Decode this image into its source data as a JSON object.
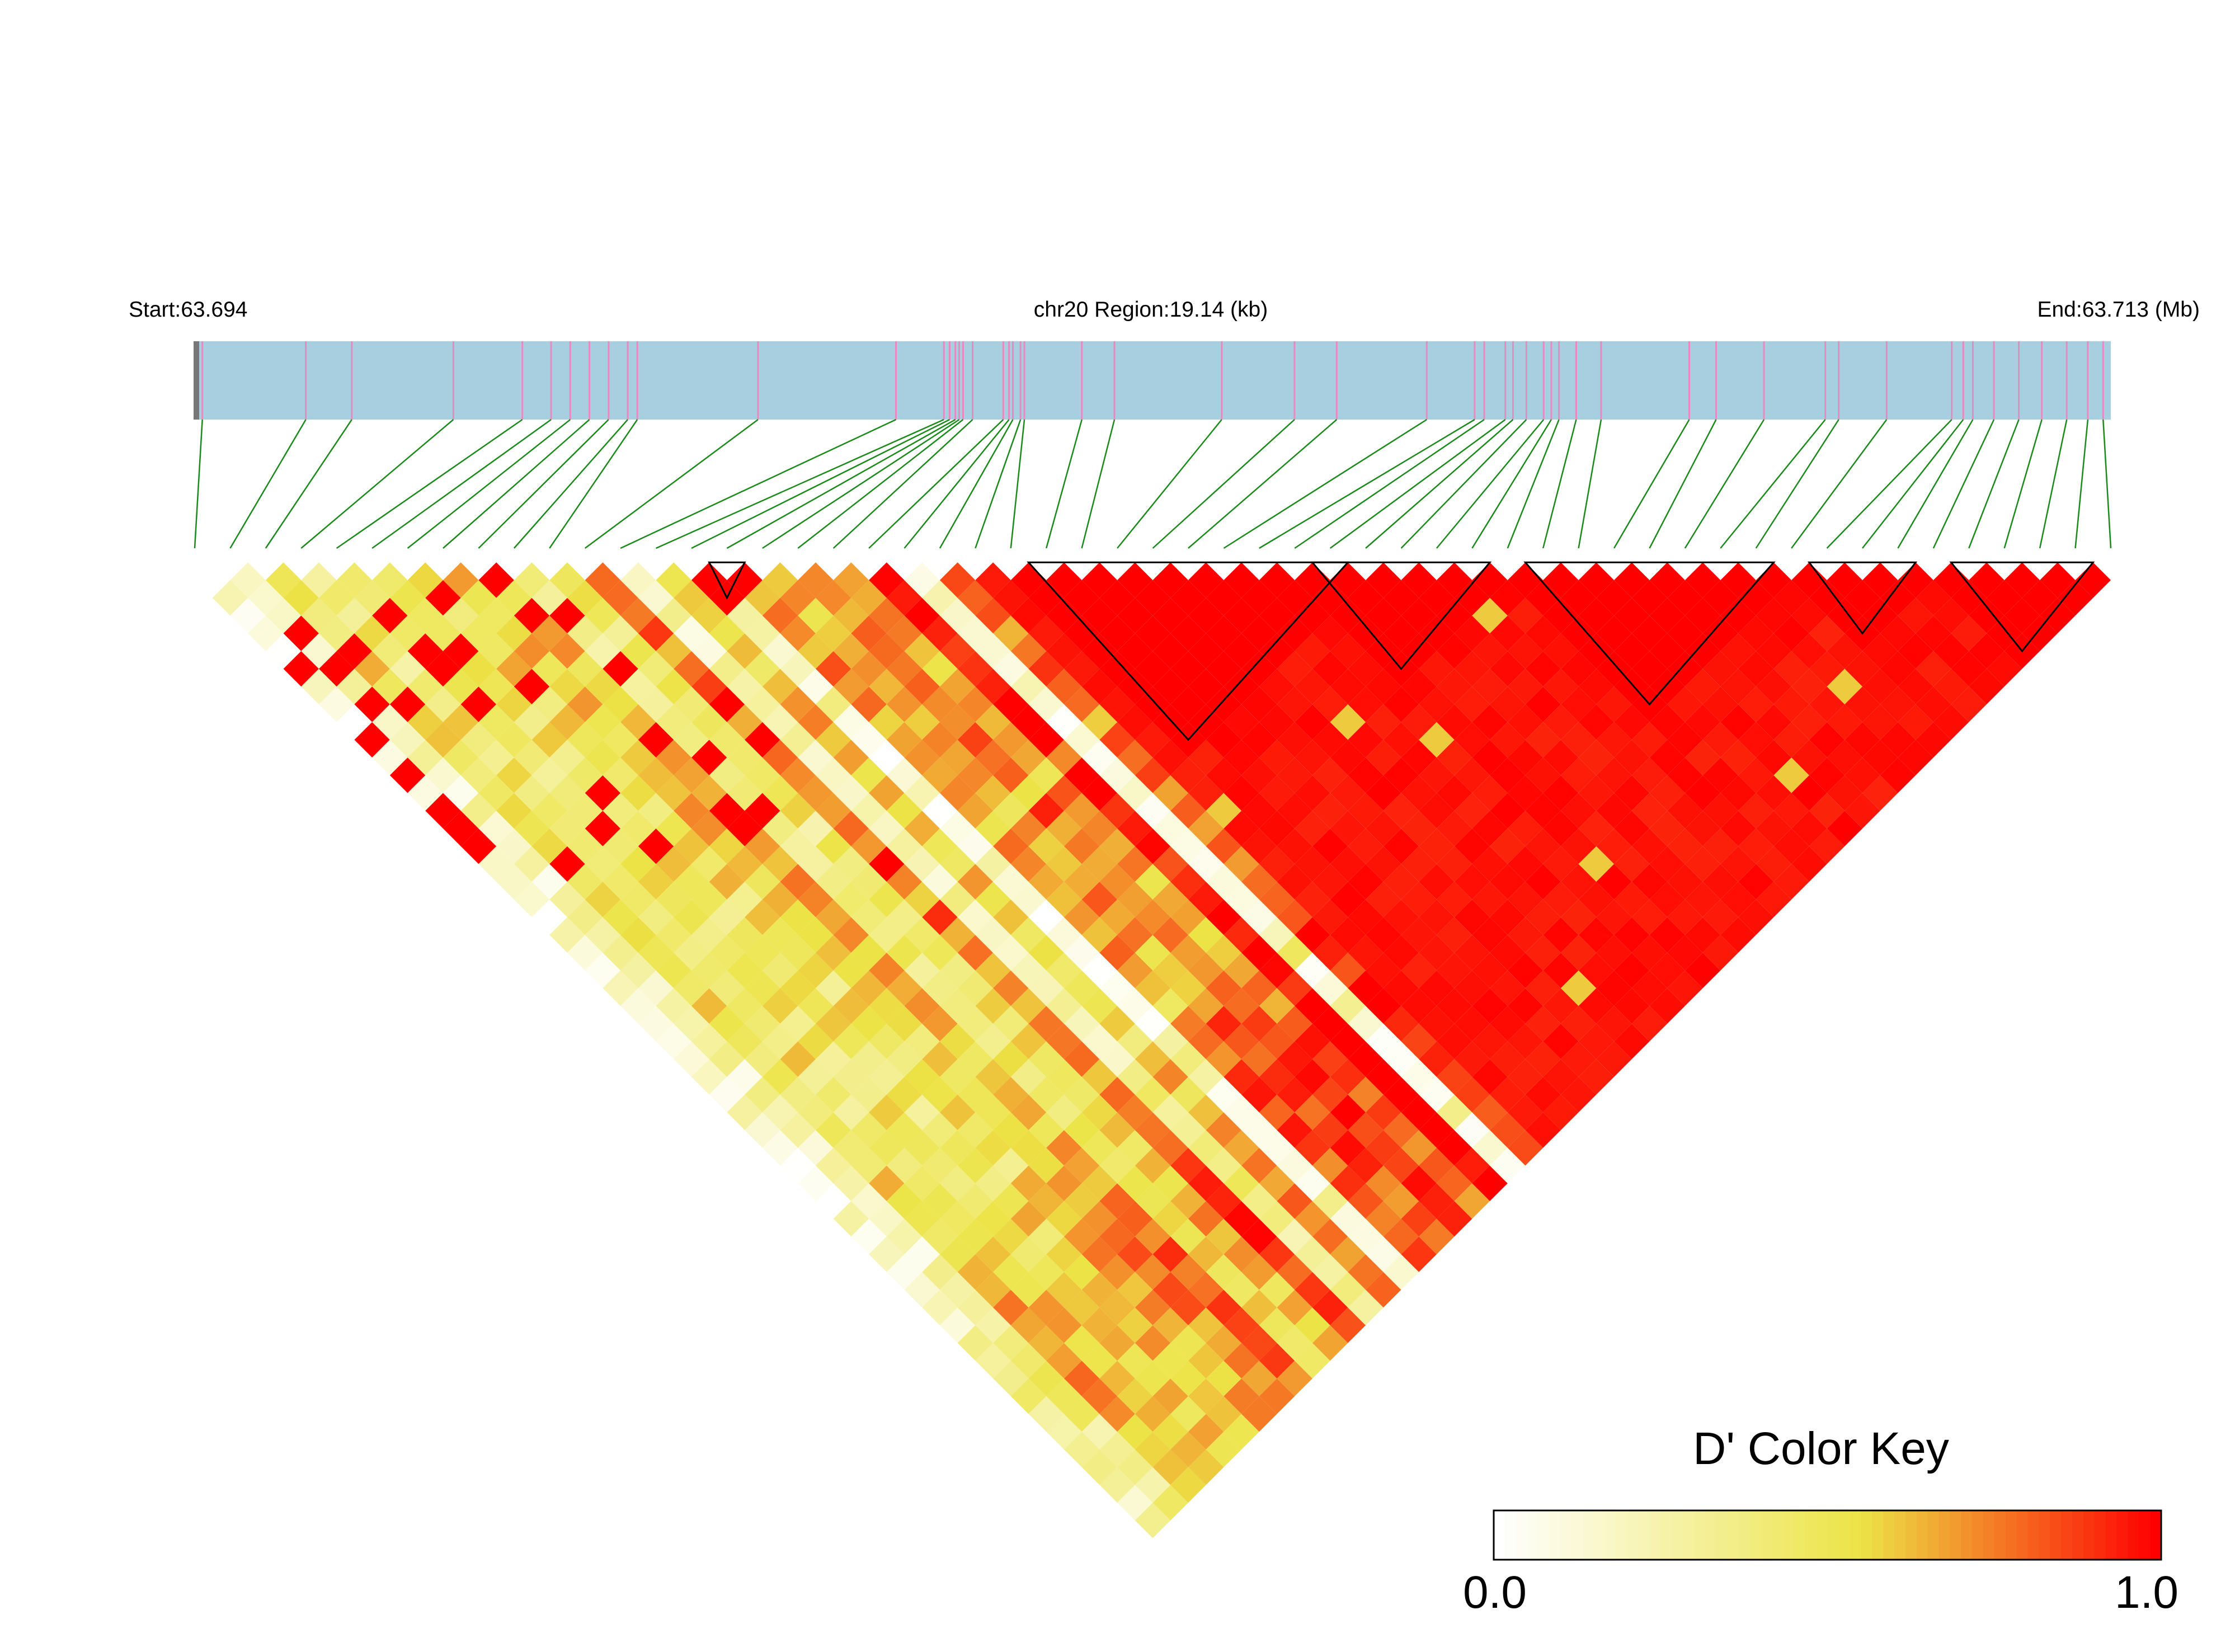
{
  "header": {
    "start_label": "Start:63.694",
    "region_label": "chr20 Region:19.14 (kb)",
    "end_label": "End:63.713 (Mb)"
  },
  "colors": {
    "track_fill": "#a8cfe0",
    "track_tick": "#e68ac0",
    "connector": "#1a8a1a",
    "low": "#ffffff",
    "mid": "#ece446",
    "high": "#ff0000",
    "block_outline": "#000000"
  },
  "chart_data": {
    "type": "heatmap",
    "subtype": "LD triangle (D')",
    "chromosome": "chr20",
    "region_start_mb": 63.694,
    "region_end_mb": 63.713,
    "region_kb": 19.14,
    "snp_count": 55,
    "snp_track_positions_fraction": [
      0.004,
      0.058,
      0.082,
      0.135,
      0.171,
      0.186,
      0.196,
      0.206,
      0.216,
      0.226,
      0.231,
      0.294,
      0.366,
      0.391,
      0.394,
      0.397,
      0.399,
      0.401,
      0.406,
      0.422,
      0.425,
      0.427,
      0.431,
      0.433,
      0.463,
      0.48,
      0.536,
      0.574,
      0.596,
      0.643,
      0.668,
      0.673,
      0.684,
      0.688,
      0.695,
      0.704,
      0.708,
      0.712,
      0.721,
      0.734,
      0.78,
      0.794,
      0.819,
      0.851,
      0.858,
      0.883,
      0.917,
      0.923,
      0.928,
      0.939,
      0.952,
      0.964,
      0.977,
      0.988,
      0.996
    ],
    "haplotype_blocks": [
      {
        "first_snp": 14,
        "last_snp": 16
      },
      {
        "first_snp": 23,
        "last_snp": 33
      },
      {
        "first_snp": 31,
        "last_snp": 37
      },
      {
        "first_snp": 37,
        "last_snp": 45
      },
      {
        "first_snp": 45,
        "last_snp": 49
      },
      {
        "first_snp": 49,
        "last_snp": 54
      }
    ],
    "color_key": {
      "title": "D' Color Key",
      "min_label": "0.0",
      "max_label": "1.0",
      "min": 0.0,
      "max": 1.0,
      "steps": 60
    }
  }
}
